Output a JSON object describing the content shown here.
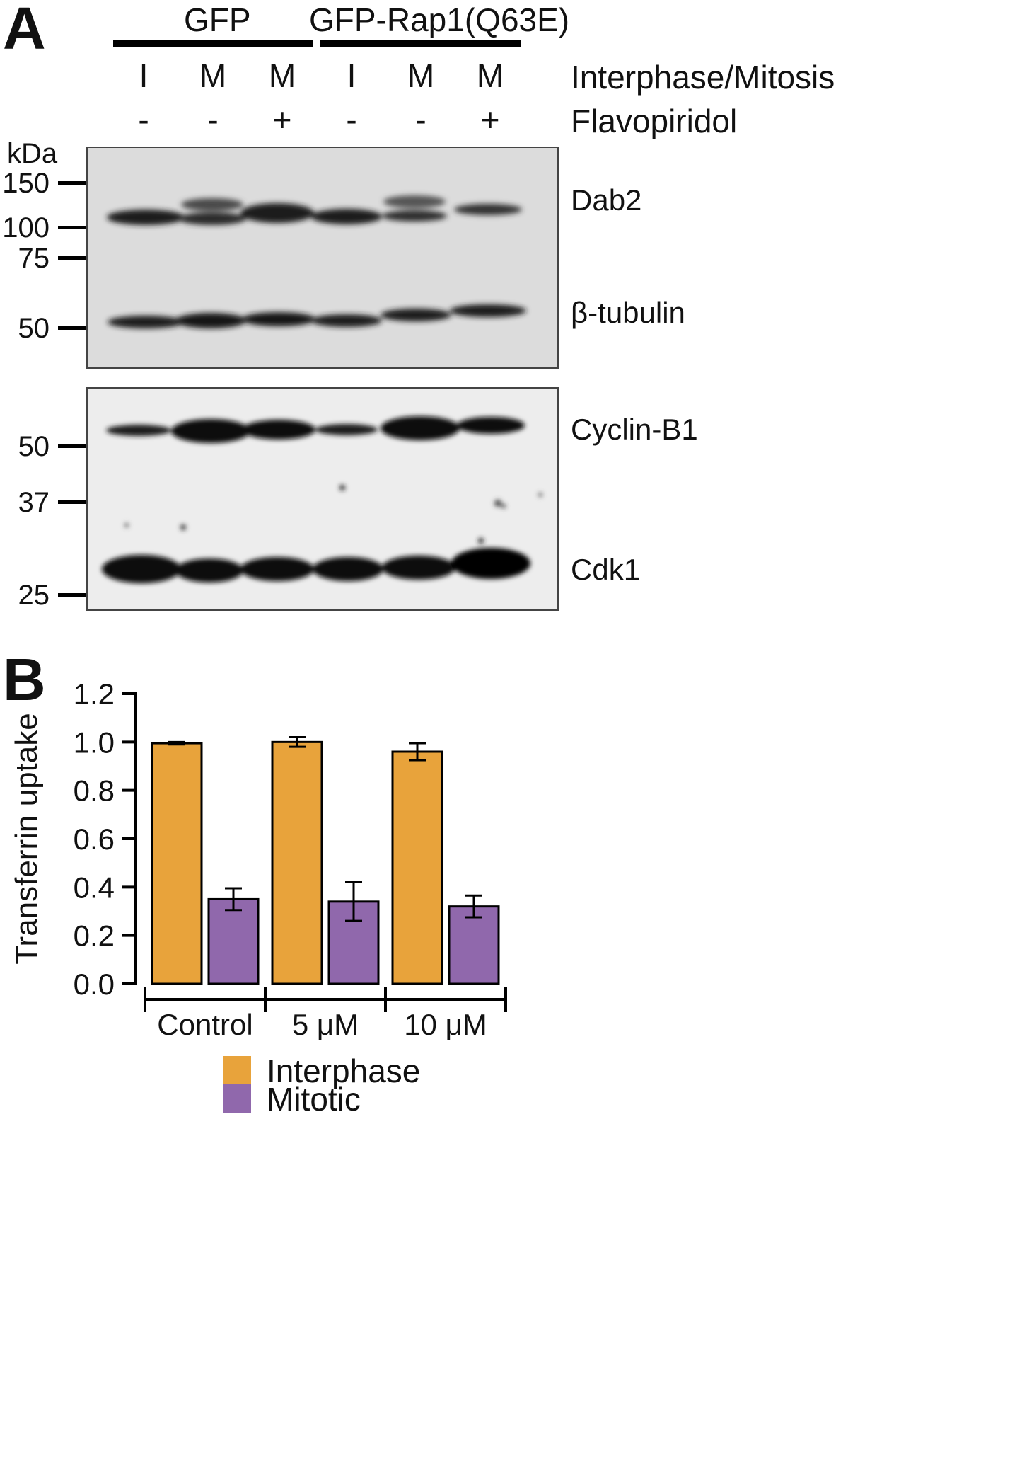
{
  "panel_a": {
    "letter": "A",
    "groups": [
      "GFP",
      "GFP-Rap1(Q63E)"
    ],
    "phase_row_label": "Interphase/Mitosis",
    "phases": [
      "I",
      "M",
      "M",
      "I",
      "M",
      "M"
    ],
    "drug_row_label": "Flavopiridol",
    "drug": [
      "-",
      "-",
      "+",
      "-",
      "-",
      "+"
    ],
    "mw_unit": "kDa",
    "upper_blot": {
      "mw_markers": [
        "150",
        "100",
        "75",
        "50"
      ],
      "bands": [
        "Dab2",
        "β-tubulin"
      ]
    },
    "lower_blot": {
      "mw_markers": [
        "50",
        "37",
        "25"
      ],
      "bands": [
        "Cyclin-B1",
        "Cdk1"
      ]
    }
  },
  "panel_b": {
    "letter": "B",
    "colors": {
      "interphase": "#E8A33B",
      "mitotic": "#9068AC"
    },
    "chart_data": {
      "type": "bar",
      "categories": [
        "Control",
        "5 μM",
        "10 μM"
      ],
      "series": [
        {
          "name": "Interphase",
          "values": [
            0.995,
            1.0,
            0.96
          ],
          "errors": [
            0.005,
            0.02,
            0.035
          ]
        },
        {
          "name": "Mitotic",
          "values": [
            0.35,
            0.34,
            0.32
          ],
          "errors": [
            0.045,
            0.08,
            0.045
          ]
        }
      ],
      "ylabel": "Transferrin uptake",
      "ylim": [
        0,
        1.2
      ],
      "yticks": [
        "0.0",
        "0.2",
        "0.4",
        "0.6",
        "0.8",
        "1.0",
        "1.2"
      ],
      "legend_position": "bottom",
      "grid": false
    }
  }
}
